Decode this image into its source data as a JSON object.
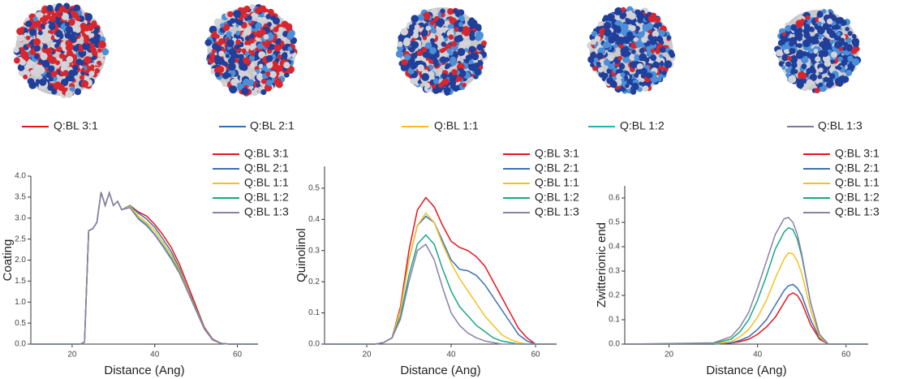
{
  "structures": [
    {
      "label": "Q:BL 3:1",
      "color": "#e8141c"
    },
    {
      "label": "Q:BL 2:1",
      "color": "#2e6dbd"
    },
    {
      "label": "Q:BL 1:1",
      "color": "#fcbc1b"
    },
    {
      "label": "Q:BL 1:2",
      "color": "#1fb3b3"
    },
    {
      "label": "Q:BL 1:3",
      "color": "#7a78a0"
    }
  ],
  "chart_data": [
    {
      "type": "line",
      "xlabel": "Distance (Ang)",
      "ylabel": "Coating",
      "xlim": [
        10,
        65
      ],
      "xticks": [
        20,
        40,
        60
      ],
      "ylim": [
        0,
        4.0
      ],
      "yticks": [
        {
          "value": 0,
          "label": "0.0"
        },
        0.5,
        {
          "value": 1,
          "label": "1.0"
        },
        1.5,
        {
          "value": 2,
          "label": "2.0"
        },
        2.5,
        {
          "value": 3,
          "label": "3.0"
        },
        3.5,
        {
          "value": 4,
          "label": "4.0"
        }
      ],
      "x": [
        10,
        20,
        22,
        23,
        24,
        25,
        26,
        27,
        28,
        29,
        30,
        31,
        32,
        34,
        36,
        38,
        40,
        42,
        44,
        46,
        48,
        50,
        52,
        54,
        56,
        58,
        60,
        65
      ],
      "series": [
        {
          "name": "Q:BL 3:1",
          "color": "#e8141c",
          "values": [
            0,
            0,
            0,
            0.05,
            2.7,
            2.75,
            2.9,
            3.62,
            3.3,
            3.6,
            3.3,
            3.4,
            3.2,
            3.3,
            3.15,
            3.05,
            2.85,
            2.6,
            2.3,
            1.9,
            1.4,
            0.9,
            0.4,
            0.12,
            0.02,
            0,
            0,
            0
          ]
        },
        {
          "name": "Q:BL 2:1",
          "color": "#3a6fb5",
          "values": [
            0,
            0,
            0,
            0.05,
            2.7,
            2.75,
            2.9,
            3.62,
            3.3,
            3.6,
            3.3,
            3.4,
            3.2,
            3.3,
            3.12,
            2.98,
            2.78,
            2.5,
            2.2,
            1.8,
            1.3,
            0.85,
            0.38,
            0.11,
            0.02,
            0,
            0,
            0
          ]
        },
        {
          "name": "Q:BL 1:1",
          "color": "#f5c021",
          "values": [
            0,
            0,
            0,
            0.05,
            2.7,
            2.75,
            2.9,
            3.62,
            3.3,
            3.6,
            3.3,
            3.4,
            3.2,
            3.28,
            3.05,
            2.9,
            2.7,
            2.42,
            2.12,
            1.75,
            1.28,
            0.82,
            0.37,
            0.1,
            0.02,
            0,
            0,
            0
          ]
        },
        {
          "name": "Q:BL 1:2",
          "color": "#18a884",
          "values": [
            0,
            0,
            0,
            0.05,
            2.7,
            2.75,
            2.9,
            3.62,
            3.3,
            3.6,
            3.3,
            3.4,
            3.2,
            3.25,
            3.0,
            2.85,
            2.62,
            2.35,
            2.05,
            1.7,
            1.25,
            0.8,
            0.36,
            0.1,
            0.02,
            0,
            0,
            0
          ]
        },
        {
          "name": "Q:BL 1:3",
          "color": "#8a80a8",
          "values": [
            0,
            0,
            0,
            0.05,
            2.7,
            2.75,
            2.9,
            3.62,
            3.3,
            3.6,
            3.3,
            3.4,
            3.2,
            3.25,
            2.98,
            2.82,
            2.6,
            2.32,
            2.02,
            1.68,
            1.24,
            0.8,
            0.36,
            0.1,
            0.02,
            0,
            0,
            0
          ]
        }
      ]
    },
    {
      "type": "line",
      "xlabel": "Distance (Ang)",
      "ylabel": "Quinolinol",
      "xlim": [
        10,
        65
      ],
      "xticks": [
        20,
        40,
        60
      ],
      "ylim": [
        0,
        0.57
      ],
      "yticks": [
        {
          "value": 0,
          "label": "0.0"
        },
        0.1,
        0.2,
        0.3,
        0.4,
        0.5
      ],
      "x": [
        10,
        22,
        24,
        26,
        28,
        30,
        32,
        34,
        36,
        38,
        40,
        42,
        44,
        46,
        48,
        50,
        52,
        54,
        56,
        58,
        60,
        65
      ],
      "series": [
        {
          "name": "Q:BL 3:1",
          "color": "#e8141c",
          "values": [
            0,
            0,
            0.005,
            0.02,
            0.12,
            0.3,
            0.43,
            0.47,
            0.44,
            0.38,
            0.33,
            0.31,
            0.3,
            0.28,
            0.25,
            0.2,
            0.15,
            0.1,
            0.05,
            0.02,
            0,
            0
          ]
        },
        {
          "name": "Q:BL 2:1",
          "color": "#3a6fb5",
          "values": [
            0,
            0,
            0.005,
            0.02,
            0.11,
            0.27,
            0.38,
            0.41,
            0.39,
            0.33,
            0.27,
            0.24,
            0.235,
            0.22,
            0.19,
            0.15,
            0.11,
            0.07,
            0.03,
            0.01,
            0,
            0
          ]
        },
        {
          "name": "Q:BL 1:1",
          "color": "#f5c021",
          "values": [
            0,
            0,
            0.005,
            0.02,
            0.11,
            0.27,
            0.38,
            0.42,
            0.39,
            0.32,
            0.26,
            0.21,
            0.17,
            0.13,
            0.09,
            0.06,
            0.03,
            0.015,
            0.005,
            0,
            0,
            0
          ]
        },
        {
          "name": "Q:BL 1:2",
          "color": "#18a884",
          "values": [
            0,
            0,
            0.005,
            0.02,
            0.09,
            0.22,
            0.32,
            0.35,
            0.32,
            0.24,
            0.17,
            0.12,
            0.09,
            0.06,
            0.04,
            0.02,
            0.01,
            0.005,
            0,
            0,
            0,
            0
          ]
        },
        {
          "name": "Q:BL 1:3",
          "color": "#8a80a8",
          "values": [
            0,
            0,
            0.005,
            0.02,
            0.08,
            0.2,
            0.3,
            0.32,
            0.27,
            0.18,
            0.1,
            0.06,
            0.035,
            0.02,
            0.01,
            0.005,
            0,
            0,
            0,
            0,
            0,
            0
          ]
        }
      ]
    },
    {
      "type": "line",
      "xlabel": "Distance (Ang)",
      "ylabel": "Zwitterionic end",
      "xlim": [
        10,
        65
      ],
      "xticks": [
        20,
        40,
        60
      ],
      "ylim": [
        0,
        0.65
      ],
      "yticks": [
        {
          "value": 0,
          "label": "0.0"
        },
        0.1,
        0.2,
        0.3,
        0.4,
        0.5,
        0.6
      ],
      "x": [
        10,
        30,
        34,
        36,
        38,
        40,
        42,
        44,
        46,
        47,
        48,
        49,
        50,
        52,
        54,
        56,
        65
      ],
      "series": [
        {
          "name": "Q:BL 3:1",
          "color": "#e8141c",
          "values": [
            0,
            0,
            0.005,
            0.01,
            0.02,
            0.04,
            0.07,
            0.11,
            0.17,
            0.2,
            0.21,
            0.2,
            0.17,
            0.08,
            0.02,
            0,
            0
          ]
        },
        {
          "name": "Q:BL 2:1",
          "color": "#3a6fb5",
          "values": [
            0,
            0,
            0.005,
            0.015,
            0.03,
            0.06,
            0.1,
            0.16,
            0.22,
            0.24,
            0.245,
            0.23,
            0.2,
            0.1,
            0.025,
            0,
            0
          ]
        },
        {
          "name": "Q:BL 1:1",
          "color": "#f5c021",
          "values": [
            0,
            0.002,
            0.01,
            0.03,
            0.06,
            0.11,
            0.18,
            0.27,
            0.35,
            0.375,
            0.37,
            0.34,
            0.29,
            0.14,
            0.03,
            0,
            0
          ]
        },
        {
          "name": "Q:BL 1:2",
          "color": "#18a884",
          "values": [
            0,
            0.003,
            0.02,
            0.05,
            0.1,
            0.18,
            0.28,
            0.39,
            0.46,
            0.478,
            0.47,
            0.43,
            0.36,
            0.17,
            0.04,
            0,
            0
          ]
        },
        {
          "name": "Q:BL 1:3",
          "color": "#8a80a8",
          "values": [
            0,
            0.005,
            0.03,
            0.07,
            0.13,
            0.23,
            0.34,
            0.45,
            0.515,
            0.52,
            0.5,
            0.45,
            0.37,
            0.17,
            0.04,
            0,
            0
          ]
        }
      ]
    }
  ]
}
